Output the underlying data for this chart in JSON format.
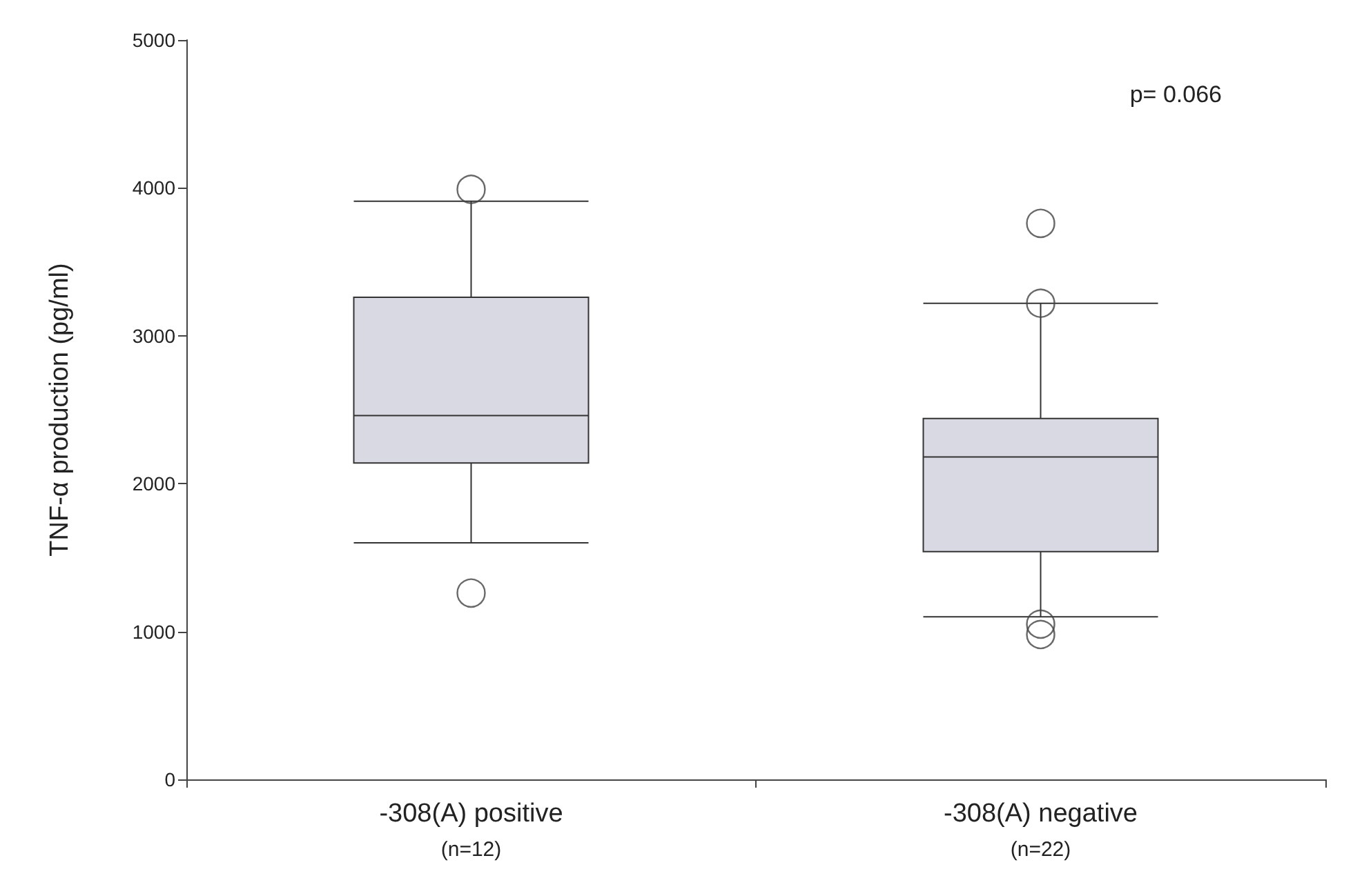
{
  "chart_data": {
    "type": "box",
    "ylabel": "TNF-α production (pg/ml)",
    "categories": [
      "-308(A) positive\n(n=12)",
      "-308(A) negative\n(n=22)"
    ],
    "boxes": [
      {
        "low": 1600,
        "q1": 2140,
        "median": 2460,
        "q3": 3260,
        "high": 3910,
        "outliers": [
          3990,
          1260
        ]
      },
      {
        "low": 1100,
        "q1": 1540,
        "median": 2180,
        "q3": 2440,
        "high": 3220,
        "outliers": [
          3760,
          3220,
          1050,
          980
        ]
      }
    ],
    "color": "#d9d9e3",
    "ylim": [
      0,
      5000
    ],
    "yticks": [
      0,
      1000,
      2000,
      3000,
      4000,
      5000
    ],
    "grid": false,
    "annotations": [
      "p= 0.066"
    ]
  }
}
